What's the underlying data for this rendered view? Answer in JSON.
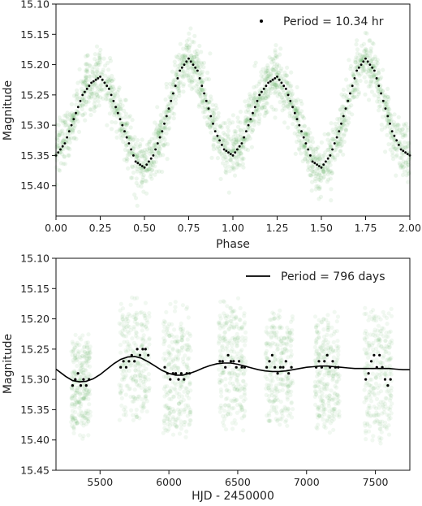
{
  "chart_data": [
    {
      "type": "scatter",
      "title": "",
      "xlabel": "Phase",
      "ylabel": "Magnitude",
      "xlim": [
        0.0,
        2.0
      ],
      "ylim": [
        15.1,
        15.45
      ],
      "y_inverted": true,
      "grid": false,
      "legend_position": "top-right",
      "xticks": [
        "0.00",
        "0.25",
        "0.50",
        "0.75",
        "1.00",
        "1.25",
        "1.50",
        "1.75",
        "2.00"
      ],
      "yticks": [
        "15.10",
        "15.15",
        "15.20",
        "15.25",
        "15.30",
        "15.35",
        "15.40"
      ],
      "series": [
        {
          "name": "",
          "role": "observations",
          "color": "#3a9a3a",
          "x": [
            0.0,
            0.05,
            0.1,
            0.15,
            0.2,
            0.25,
            0.3,
            0.35,
            0.4,
            0.45,
            0.5,
            0.55,
            0.6,
            0.65,
            0.7,
            0.75,
            0.8,
            0.85,
            0.9,
            0.95,
            1.0,
            1.05,
            1.1,
            1.15,
            1.2,
            1.25,
            1.3,
            1.35,
            1.4,
            1.45,
            1.5,
            1.55,
            1.6,
            1.65,
            1.7,
            1.75,
            1.8,
            1.85,
            1.9,
            1.95,
            2.0
          ],
          "y": [
            15.35,
            15.33,
            15.29,
            15.25,
            15.23,
            15.22,
            15.24,
            15.28,
            15.32,
            15.36,
            15.37,
            15.35,
            15.31,
            15.26,
            15.21,
            15.19,
            15.21,
            15.26,
            15.31,
            15.34,
            15.35,
            15.33,
            15.29,
            15.25,
            15.23,
            15.22,
            15.24,
            15.28,
            15.32,
            15.36,
            15.37,
            15.35,
            15.31,
            15.26,
            15.21,
            15.19,
            15.21,
            15.26,
            15.31,
            15.34,
            15.35
          ],
          "spread": 0.05
        },
        {
          "name": "Period = 10.34 hr",
          "role": "binned",
          "color": "#000000",
          "x": [
            0.0,
            0.05,
            0.1,
            0.15,
            0.2,
            0.25,
            0.3,
            0.35,
            0.4,
            0.45,
            0.5,
            0.55,
            0.6,
            0.65,
            0.7,
            0.75,
            0.8,
            0.85,
            0.9,
            0.95,
            1.0,
            1.05,
            1.1,
            1.15,
            1.2,
            1.25,
            1.3,
            1.35,
            1.4,
            1.45,
            1.5,
            1.55,
            1.6,
            1.65,
            1.7,
            1.75,
            1.8,
            1.85,
            1.9,
            1.95,
            2.0
          ],
          "y": [
            15.35,
            15.33,
            15.29,
            15.25,
            15.23,
            15.22,
            15.24,
            15.28,
            15.32,
            15.36,
            15.37,
            15.35,
            15.31,
            15.26,
            15.21,
            15.19,
            15.21,
            15.26,
            15.31,
            15.34,
            15.35,
            15.33,
            15.29,
            15.25,
            15.23,
            15.22,
            15.24,
            15.28,
            15.32,
            15.36,
            15.37,
            15.35,
            15.31,
            15.26,
            15.21,
            15.19,
            15.21,
            15.26,
            15.31,
            15.34,
            15.35
          ]
        }
      ]
    },
    {
      "type": "scatter",
      "title": "",
      "xlabel": "HJD - 2450000",
      "ylabel": "Magnitude",
      "xlim": [
        5180,
        7750
      ],
      "ylim": [
        15.1,
        15.45
      ],
      "y_inverted": true,
      "grid": false,
      "legend_position": "top-right",
      "xticks": [
        "5500",
        "6000",
        "6500",
        "7000",
        "7500"
      ],
      "xtick_values": [
        5500,
        6000,
        6500,
        7000,
        7500
      ],
      "yticks": [
        "15.10",
        "15.15",
        "15.20",
        "15.25",
        "15.30",
        "15.35",
        "15.40",
        "15.45"
      ],
      "seasons": [
        {
          "x_start": 5290,
          "x_end": 5430,
          "y_min": 15.22,
          "y_max": 15.4
        },
        {
          "x_start": 5640,
          "x_end": 5860,
          "y_min": 15.16,
          "y_max": 15.38
        },
        {
          "x_start": 5960,
          "x_end": 6160,
          "y_min": 15.17,
          "y_max": 15.41
        },
        {
          "x_start": 6360,
          "x_end": 6560,
          "y_min": 15.16,
          "y_max": 15.39
        },
        {
          "x_start": 6700,
          "x_end": 6900,
          "y_min": 15.18,
          "y_max": 15.39
        },
        {
          "x_start": 7060,
          "x_end": 7240,
          "y_min": 15.18,
          "y_max": 15.4
        },
        {
          "x_start": 7420,
          "x_end": 7620,
          "y_min": 15.17,
          "y_max": 15.42
        }
      ],
      "series": [
        {
          "name": "",
          "role": "binned",
          "color": "#000000",
          "x": [
            5300,
            5320,
            5340,
            5360,
            5380,
            5400,
            5420,
            5650,
            5670,
            5690,
            5710,
            5730,
            5750,
            5770,
            5790,
            5810,
            5830,
            5850,
            5970,
            5990,
            6010,
            6030,
            6050,
            6070,
            6090,
            6110,
            6130,
            6150,
            6370,
            6390,
            6410,
            6430,
            6450,
            6470,
            6490,
            6510,
            6530,
            6550,
            6710,
            6730,
            6750,
            6770,
            6790,
            6810,
            6830,
            6850,
            6870,
            6890,
            7070,
            7090,
            7110,
            7130,
            7150,
            7170,
            7190,
            7210,
            7230,
            7430,
            7450,
            7470,
            7490,
            7510,
            7530,
            7550,
            7570,
            7590,
            7610
          ],
          "y": [
            15.31,
            15.3,
            15.29,
            15.31,
            15.3,
            15.31,
            15.3,
            15.28,
            15.27,
            15.28,
            15.27,
            15.26,
            15.27,
            15.25,
            15.26,
            15.25,
            15.25,
            15.26,
            15.28,
            15.29,
            15.3,
            15.29,
            15.29,
            15.3,
            15.29,
            15.3,
            15.29,
            15.29,
            15.27,
            15.27,
            15.28,
            15.26,
            15.27,
            15.27,
            15.28,
            15.27,
            15.28,
            15.28,
            15.28,
            15.27,
            15.26,
            15.28,
            15.29,
            15.28,
            15.28,
            15.27,
            15.29,
            15.28,
            15.28,
            15.27,
            15.28,
            15.27,
            15.26,
            15.28,
            15.27,
            15.28,
            15.28,
            15.3,
            15.29,
            15.27,
            15.26,
            15.28,
            15.26,
            15.28,
            15.3,
            15.31,
            15.3
          ]
        },
        {
          "name": "Period = 796 days",
          "role": "model",
          "type": "line",
          "color": "#000000",
          "x": [
            5180,
            5250,
            5300,
            5350,
            5400,
            5450,
            5500,
            5550,
            5600,
            5650,
            5700,
            5750,
            5800,
            5850,
            5900,
            5950,
            6000,
            6050,
            6100,
            6150,
            6200,
            6250,
            6300,
            6350,
            6400,
            6450,
            6500,
            6550,
            6600,
            6650,
            6700,
            6750,
            6800,
            6850,
            6900,
            6950,
            7000,
            7050,
            7100,
            7150,
            7200,
            7250,
            7300,
            7350,
            7400,
            7450,
            7500,
            7550,
            7600,
            7650,
            7700,
            7750
          ],
          "y": [
            15.283,
            15.295,
            15.302,
            15.304,
            15.303,
            15.299,
            15.292,
            15.283,
            15.274,
            15.267,
            15.263,
            15.262,
            15.265,
            15.271,
            15.278,
            15.285,
            15.29,
            15.293,
            15.293,
            15.29,
            15.286,
            15.281,
            15.277,
            15.274,
            15.273,
            15.273,
            15.275,
            15.278,
            15.281,
            15.284,
            15.286,
            15.287,
            15.287,
            15.286,
            15.284,
            15.282,
            15.28,
            15.279,
            15.278,
            15.278,
            15.279,
            15.28,
            15.281,
            15.282,
            15.282,
            15.282,
            15.282,
            15.282,
            15.282,
            15.283,
            15.284,
            15.284
          ]
        }
      ]
    }
  ]
}
